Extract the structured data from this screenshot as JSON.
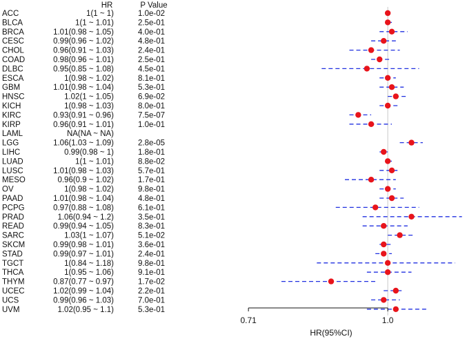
{
  "chart_data": {
    "type": "forest",
    "columns": {
      "label": "",
      "hr": "HR",
      "p": "P Value"
    },
    "xlabel": "HR(95%CI)",
    "x_ticks": [
      {
        "value": 0.71,
        "label": "0.71"
      },
      {
        "value": 1.0,
        "label": "1.0"
      }
    ],
    "reference_line": 1.0,
    "xlim": [
      0.692,
      1.215
    ],
    "x_scale": "log",
    "colors": {
      "point": "#e8141b",
      "ci": "#1f2fe0",
      "ref": "#c8c8c8",
      "text": "#111111"
    },
    "rows": [
      {
        "cancer": "ACC",
        "hr_text": "1(1 ~ 1)",
        "p_text": "1.0e-02",
        "hr": 1.0,
        "lo": 1.0,
        "hi": 1.0
      },
      {
        "cancer": "BLCA",
        "hr_text": "1(1 ~ 1.01)",
        "p_text": "2.5e-01",
        "hr": 1.0,
        "lo": 1.0,
        "hi": 1.01
      },
      {
        "cancer": "BRCA",
        "hr_text": "1.01(0.98 ~ 1.05)",
        "p_text": "4.0e-01",
        "hr": 1.01,
        "lo": 0.98,
        "hi": 1.05
      },
      {
        "cancer": "CESC",
        "hr_text": "0.99(0.96 ~ 1.02)",
        "p_text": "4.8e-01",
        "hr": 0.99,
        "lo": 0.96,
        "hi": 1.02
      },
      {
        "cancer": "CHOL",
        "hr_text": "0.96(0.91 ~ 1.03)",
        "p_text": "2.4e-01",
        "hr": 0.96,
        "lo": 0.91,
        "hi": 1.03
      },
      {
        "cancer": "COAD",
        "hr_text": "0.98(0.96 ~ 1.01)",
        "p_text": "2.5e-01",
        "hr": 0.98,
        "lo": 0.96,
        "hi": 1.01
      },
      {
        "cancer": "DLBC",
        "hr_text": "0.95(0.85 ~ 1.08)",
        "p_text": "4.5e-01",
        "hr": 0.95,
        "lo": 0.85,
        "hi": 1.08
      },
      {
        "cancer": "ESCA",
        "hr_text": "1(0.98 ~ 1.02)",
        "p_text": "8.1e-01",
        "hr": 1.0,
        "lo": 0.98,
        "hi": 1.02
      },
      {
        "cancer": "GBM",
        "hr_text": "1.01(0.98 ~ 1.04)",
        "p_text": "5.3e-01",
        "hr": 1.01,
        "lo": 0.98,
        "hi": 1.04
      },
      {
        "cancer": "HNSC",
        "hr_text": "1.02(1 ~ 1.05)",
        "p_text": "6.9e-02",
        "hr": 1.02,
        "lo": 1.0,
        "hi": 1.05
      },
      {
        "cancer": "KICH",
        "hr_text": "1(0.98 ~ 1.03)",
        "p_text": "8.0e-01",
        "hr": 1.0,
        "lo": 0.98,
        "hi": 1.03
      },
      {
        "cancer": "KIRC",
        "hr_text": "0.93(0.91 ~ 0.96)",
        "p_text": "7.5e-07",
        "hr": 0.93,
        "lo": 0.91,
        "hi": 0.96
      },
      {
        "cancer": "KIRP",
        "hr_text": "0.96(0.91 ~ 1.01)",
        "p_text": "1.0e-01",
        "hr": 0.96,
        "lo": 0.91,
        "hi": 1.01
      },
      {
        "cancer": "LAML",
        "hr_text": "NA(NA ~ NA)",
        "p_text": "",
        "hr": null,
        "lo": null,
        "hi": null
      },
      {
        "cancer": "LGG",
        "hr_text": "1.06(1.03 ~ 1.09)",
        "p_text": "2.8e-05",
        "hr": 1.06,
        "lo": 1.03,
        "hi": 1.09
      },
      {
        "cancer": "LIHC",
        "hr_text": "0.99(0.98 ~ 1)",
        "p_text": "1.8e-01",
        "hr": 0.99,
        "lo": 0.98,
        "hi": 1.0
      },
      {
        "cancer": "LUAD",
        "hr_text": "1(1 ~ 1.01)",
        "p_text": "8.8e-02",
        "hr": 1.0,
        "lo": 1.0,
        "hi": 1.01
      },
      {
        "cancer": "LUSC",
        "hr_text": "1.01(0.98 ~ 1.03)",
        "p_text": "5.7e-01",
        "hr": 1.01,
        "lo": 0.98,
        "hi": 1.03
      },
      {
        "cancer": "MESO",
        "hr_text": "0.96(0.9 ~ 1.02)",
        "p_text": "1.7e-01",
        "hr": 0.96,
        "lo": 0.9,
        "hi": 1.02
      },
      {
        "cancer": "OV",
        "hr_text": "1(0.98 ~ 1.02)",
        "p_text": "9.8e-01",
        "hr": 1.0,
        "lo": 0.98,
        "hi": 1.02
      },
      {
        "cancer": "PAAD",
        "hr_text": "1.01(0.98 ~ 1.04)",
        "p_text": "4.8e-01",
        "hr": 1.01,
        "lo": 0.98,
        "hi": 1.04
      },
      {
        "cancer": "PCPG",
        "hr_text": "0.97(0.88 ~ 1.08)",
        "p_text": "6.1e-01",
        "hr": 0.97,
        "lo": 0.88,
        "hi": 1.08
      },
      {
        "cancer": "PRAD",
        "hr_text": "1.06(0.94 ~ 1.2)",
        "p_text": "3.5e-01",
        "hr": 1.06,
        "lo": 0.94,
        "hi": 1.2
      },
      {
        "cancer": "READ",
        "hr_text": "0.99(0.94 ~ 1.05)",
        "p_text": "8.3e-01",
        "hr": 0.99,
        "lo": 0.94,
        "hi": 1.05
      },
      {
        "cancer": "SARC",
        "hr_text": "1.03(1 ~ 1.07)",
        "p_text": "5.1e-02",
        "hr": 1.03,
        "lo": 1.0,
        "hi": 1.07
      },
      {
        "cancer": "SKCM",
        "hr_text": "0.99(0.98 ~ 1.01)",
        "p_text": "3.6e-01",
        "hr": 0.99,
        "lo": 0.98,
        "hi": 1.01
      },
      {
        "cancer": "STAD",
        "hr_text": "0.99(0.97 ~ 1.01)",
        "p_text": "2.4e-01",
        "hr": 0.99,
        "lo": 0.97,
        "hi": 1.01
      },
      {
        "cancer": "TGCT",
        "hr_text": "1(0.84 ~ 1.18)",
        "p_text": "9.8e-01",
        "hr": 1.0,
        "lo": 0.84,
        "hi": 1.18
      },
      {
        "cancer": "THCA",
        "hr_text": "1(0.95 ~ 1.06)",
        "p_text": "9.1e-01",
        "hr": 1.0,
        "lo": 0.95,
        "hi": 1.06
      },
      {
        "cancer": "THYM",
        "hr_text": "0.87(0.77 ~ 0.97)",
        "p_text": "1.7e-02",
        "hr": 0.87,
        "lo": 0.77,
        "hi": 0.97
      },
      {
        "cancer": "UCEC",
        "hr_text": "1.02(0.99 ~ 1.04)",
        "p_text": "2.2e-01",
        "hr": 1.02,
        "lo": 0.99,
        "hi": 1.04
      },
      {
        "cancer": "UCS",
        "hr_text": "0.99(0.96 ~ 1.03)",
        "p_text": "7.0e-01",
        "hr": 0.99,
        "lo": 0.96,
        "hi": 1.03
      },
      {
        "cancer": "UVM",
        "hr_text": "1.02(0.95 ~ 1.1)",
        "p_text": "5.3e-01",
        "hr": 1.02,
        "lo": 0.95,
        "hi": 1.1
      }
    ]
  }
}
